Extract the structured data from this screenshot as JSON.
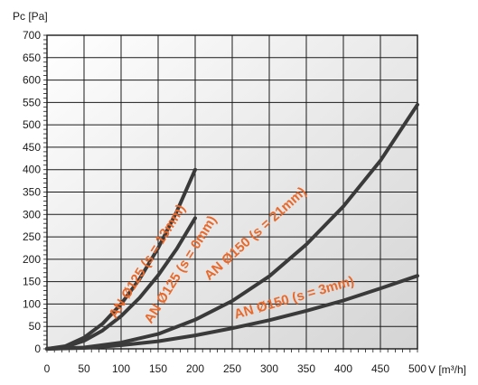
{
  "chart_data": {
    "type": "line",
    "ylabel": "Pc [Pa]",
    "xlabel": "V [m³/h]",
    "xlim": [
      0,
      500
    ],
    "ylim": [
      0,
      700
    ],
    "x_ticks": [
      0,
      50,
      100,
      150,
      200,
      250,
      300,
      350,
      400,
      450,
      500
    ],
    "y_ticks": [
      0,
      50,
      100,
      150,
      200,
      250,
      300,
      350,
      400,
      450,
      500,
      550,
      600,
      650,
      700
    ],
    "grid": true,
    "background_gradient": [
      "#ffffff",
      "#d4d4d4"
    ],
    "line_color": "#3a3a3a",
    "label_color": "#e8692c",
    "series": [
      {
        "name": "AN Ø125 (s = 13mm)",
        "x": [
          0,
          25,
          50,
          75,
          100,
          125,
          150,
          175,
          200
        ],
        "y": [
          0,
          6,
          25,
          56,
          100,
          156,
          225,
          306,
          400
        ]
      },
      {
        "name": "AN Ø125 (s = 0mm)",
        "x": [
          0,
          25,
          50,
          75,
          100,
          125,
          150,
          175,
          200
        ],
        "y": [
          0,
          4.5,
          18,
          41,
          73,
          114,
          164,
          223,
          292
        ]
      },
      {
        "name": "AN Ø150 (s = 21mm)",
        "x": [
          0,
          50,
          100,
          150,
          200,
          250,
          300,
          350,
          400,
          450,
          500
        ],
        "y": [
          0,
          3,
          14,
          33,
          65,
          107,
          162,
          233,
          318,
          420,
          545
        ]
      },
      {
        "name": "AN Ø150 (s = 3mm)",
        "x": [
          0,
          50,
          100,
          150,
          200,
          250,
          300,
          350,
          400,
          450,
          500
        ],
        "y": [
          0,
          2,
          8,
          17,
          30,
          46,
          64,
          85,
          108,
          135,
          163
        ]
      }
    ]
  }
}
